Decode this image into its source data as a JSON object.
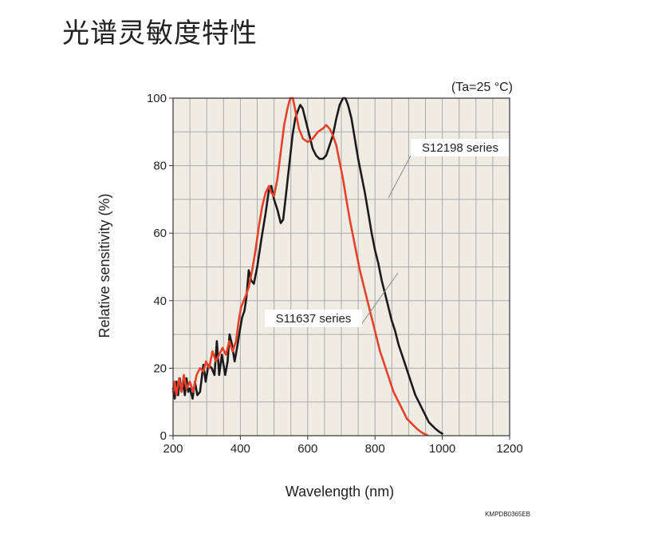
{
  "page": {
    "title": "光谱灵敏度特性",
    "figure_code": "KMPDB0365EB"
  },
  "colors": {
    "plot_background": "#efece4",
    "grid": "#aaaaaa",
    "s12198": "#1a1a1a",
    "s11637": "#e8402a"
  },
  "chart_data": {
    "type": "line",
    "condition": "(Ta=25 °C)",
    "xlabel": "Wavelength (nm)",
    "ylabel": "Relative sensitivity (%)",
    "xlim": [
      200,
      1200
    ],
    "ylim": [
      0,
      100
    ],
    "x_ticks": [
      200,
      400,
      600,
      800,
      1000,
      1200
    ],
    "y_ticks": [
      0,
      20,
      40,
      60,
      80,
      100
    ],
    "grid": true,
    "series": [
      {
        "name": "S12198 series",
        "color": "#1a1a1a",
        "dashed_beyond": 1000,
        "points": [
          [
            200,
            14
          ],
          [
            205,
            11
          ],
          [
            210,
            16
          ],
          [
            215,
            12
          ],
          [
            220,
            17
          ],
          [
            225,
            13
          ],
          [
            230,
            16
          ],
          [
            235,
            12
          ],
          [
            240,
            17
          ],
          [
            245,
            13
          ],
          [
            250,
            14
          ],
          [
            258,
            11
          ],
          [
            265,
            16
          ],
          [
            272,
            12
          ],
          [
            280,
            13
          ],
          [
            290,
            21
          ],
          [
            297,
            16
          ],
          [
            305,
            21
          ],
          [
            315,
            20
          ],
          [
            323,
            18
          ],
          [
            330,
            28
          ],
          [
            337,
            18
          ],
          [
            345,
            24
          ],
          [
            355,
            18
          ],
          [
            362,
            22
          ],
          [
            368,
            30
          ],
          [
            375,
            27
          ],
          [
            383,
            22
          ],
          [
            390,
            26
          ],
          [
            398,
            31
          ],
          [
            405,
            35
          ],
          [
            412,
            37
          ],
          [
            418,
            41
          ],
          [
            425,
            49
          ],
          [
            432,
            46
          ],
          [
            440,
            45
          ],
          [
            450,
            50
          ],
          [
            462,
            58
          ],
          [
            475,
            66
          ],
          [
            485,
            73
          ],
          [
            492,
            74
          ],
          [
            500,
            70
          ],
          [
            510,
            67
          ],
          [
            520,
            63
          ],
          [
            527,
            64
          ],
          [
            535,
            71
          ],
          [
            545,
            80
          ],
          [
            555,
            89
          ],
          [
            563,
            94
          ],
          [
            570,
            96
          ],
          [
            578,
            98
          ],
          [
            585,
            97
          ],
          [
            595,
            93
          ],
          [
            605,
            89
          ],
          [
            615,
            85
          ],
          [
            625,
            83
          ],
          [
            635,
            82
          ],
          [
            645,
            82
          ],
          [
            655,
            83
          ],
          [
            665,
            86
          ],
          [
            675,
            89
          ],
          [
            685,
            94
          ],
          [
            695,
            98
          ],
          [
            705,
            100
          ],
          [
            712,
            100
          ],
          [
            720,
            98
          ],
          [
            730,
            94
          ],
          [
            740,
            88
          ],
          [
            750,
            82
          ],
          [
            760,
            77
          ],
          [
            770,
            72
          ],
          [
            780,
            66
          ],
          [
            790,
            60
          ],
          [
            800,
            55
          ],
          [
            810,
            51
          ],
          [
            820,
            46
          ],
          [
            830,
            42
          ],
          [
            840,
            38
          ],
          [
            850,
            34
          ],
          [
            860,
            31
          ],
          [
            870,
            27
          ],
          [
            880,
            24
          ],
          [
            890,
            21
          ],
          [
            900,
            18
          ],
          [
            910,
            15
          ],
          [
            920,
            12
          ],
          [
            930,
            10
          ],
          [
            940,
            8
          ],
          [
            950,
            6
          ],
          [
            960,
            4
          ],
          [
            970,
            3
          ],
          [
            980,
            2
          ],
          [
            990,
            1.2
          ],
          [
            1000,
            0.6
          ]
        ]
      },
      {
        "name": "S11637 series",
        "color": "#e8402a",
        "dashed_beyond": 990,
        "points": [
          [
            200,
            13
          ],
          [
            205,
            16
          ],
          [
            210,
            12
          ],
          [
            218,
            17
          ],
          [
            225,
            13
          ],
          [
            232,
            18
          ],
          [
            240,
            14
          ],
          [
            250,
            16
          ],
          [
            260,
            13
          ],
          [
            270,
            18
          ],
          [
            280,
            20
          ],
          [
            290,
            19
          ],
          [
            298,
            22
          ],
          [
            307,
            20
          ],
          [
            317,
            25
          ],
          [
            327,
            22
          ],
          [
            337,
            24
          ],
          [
            347,
            26
          ],
          [
            357,
            24
          ],
          [
            367,
            28
          ],
          [
            377,
            25
          ],
          [
            387,
            28
          ],
          [
            395,
            34
          ],
          [
            402,
            38
          ],
          [
            410,
            40
          ],
          [
            418,
            42
          ],
          [
            425,
            44
          ],
          [
            435,
            49
          ],
          [
            445,
            55
          ],
          [
            455,
            62
          ],
          [
            465,
            68
          ],
          [
            475,
            72
          ],
          [
            485,
            74
          ],
          [
            492,
            72
          ],
          [
            500,
            71
          ],
          [
            510,
            76
          ],
          [
            520,
            84
          ],
          [
            530,
            92
          ],
          [
            540,
            97
          ],
          [
            548,
            100
          ],
          [
            556,
            100
          ],
          [
            564,
            96
          ],
          [
            574,
            91
          ],
          [
            586,
            88
          ],
          [
            600,
            87
          ],
          [
            615,
            88
          ],
          [
            630,
            90
          ],
          [
            645,
            91
          ],
          [
            655,
            92
          ],
          [
            665,
            91
          ],
          [
            675,
            89
          ],
          [
            685,
            86
          ],
          [
            695,
            81
          ],
          [
            705,
            76
          ],
          [
            715,
            70
          ],
          [
            725,
            64
          ],
          [
            735,
            59
          ],
          [
            745,
            54
          ],
          [
            755,
            49
          ],
          [
            765,
            45
          ],
          [
            775,
            41
          ],
          [
            785,
            37
          ],
          [
            795,
            33
          ],
          [
            805,
            29
          ],
          [
            815,
            25
          ],
          [
            825,
            22
          ],
          [
            835,
            19
          ],
          [
            845,
            16
          ],
          [
            855,
            13
          ],
          [
            865,
            11
          ],
          [
            875,
            9
          ],
          [
            885,
            7
          ],
          [
            895,
            5
          ],
          [
            905,
            4
          ],
          [
            915,
            3
          ],
          [
            925,
            2
          ],
          [
            935,
            1.2
          ],
          [
            945,
            0.6
          ],
          [
            955,
            0.2
          ]
        ]
      }
    ],
    "annotations": [
      {
        "text": "S12198 series",
        "target_series": "S12198 series"
      },
      {
        "text": "S11637 series",
        "target_series": "S11637 series"
      }
    ]
  }
}
